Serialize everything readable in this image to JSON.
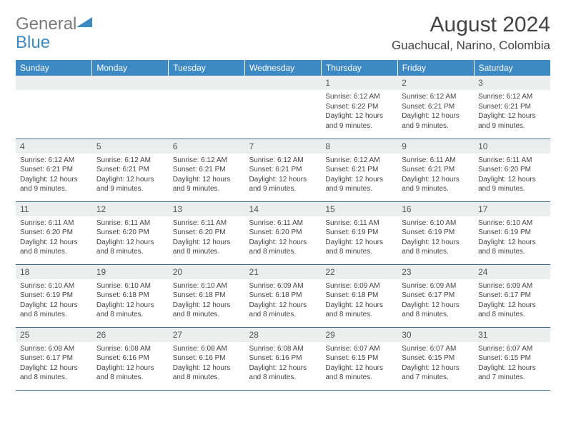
{
  "logo": {
    "text_gray": "General",
    "text_blue": "Blue",
    "triangle_color": "#3d89c4"
  },
  "header": {
    "title": "August 2024",
    "location": "Guachucal, Narino, Colombia"
  },
  "colors": {
    "header_bg": "#3d89c4",
    "header_text": "#ffffff",
    "daynum_bg": "#eceded",
    "border": "#3d6f99"
  },
  "weekdays": [
    "Sunday",
    "Monday",
    "Tuesday",
    "Wednesday",
    "Thursday",
    "Friday",
    "Saturday"
  ],
  "weeks": [
    [
      {
        "day": "",
        "sunrise": "",
        "sunset": "",
        "daylight": ""
      },
      {
        "day": "",
        "sunrise": "",
        "sunset": "",
        "daylight": ""
      },
      {
        "day": "",
        "sunrise": "",
        "sunset": "",
        "daylight": ""
      },
      {
        "day": "",
        "sunrise": "",
        "sunset": "",
        "daylight": ""
      },
      {
        "day": "1",
        "sunrise": "6:12 AM",
        "sunset": "6:22 PM",
        "daylight": "12 hours and 9 minutes."
      },
      {
        "day": "2",
        "sunrise": "6:12 AM",
        "sunset": "6:21 PM",
        "daylight": "12 hours and 9 minutes."
      },
      {
        "day": "3",
        "sunrise": "6:12 AM",
        "sunset": "6:21 PM",
        "daylight": "12 hours and 9 minutes."
      }
    ],
    [
      {
        "day": "4",
        "sunrise": "6:12 AM",
        "sunset": "6:21 PM",
        "daylight": "12 hours and 9 minutes."
      },
      {
        "day": "5",
        "sunrise": "6:12 AM",
        "sunset": "6:21 PM",
        "daylight": "12 hours and 9 minutes."
      },
      {
        "day": "6",
        "sunrise": "6:12 AM",
        "sunset": "6:21 PM",
        "daylight": "12 hours and 9 minutes."
      },
      {
        "day": "7",
        "sunrise": "6:12 AM",
        "sunset": "6:21 PM",
        "daylight": "12 hours and 9 minutes."
      },
      {
        "day": "8",
        "sunrise": "6:12 AM",
        "sunset": "6:21 PM",
        "daylight": "12 hours and 9 minutes."
      },
      {
        "day": "9",
        "sunrise": "6:11 AM",
        "sunset": "6:21 PM",
        "daylight": "12 hours and 9 minutes."
      },
      {
        "day": "10",
        "sunrise": "6:11 AM",
        "sunset": "6:20 PM",
        "daylight": "12 hours and 9 minutes."
      }
    ],
    [
      {
        "day": "11",
        "sunrise": "6:11 AM",
        "sunset": "6:20 PM",
        "daylight": "12 hours and 8 minutes."
      },
      {
        "day": "12",
        "sunrise": "6:11 AM",
        "sunset": "6:20 PM",
        "daylight": "12 hours and 8 minutes."
      },
      {
        "day": "13",
        "sunrise": "6:11 AM",
        "sunset": "6:20 PM",
        "daylight": "12 hours and 8 minutes."
      },
      {
        "day": "14",
        "sunrise": "6:11 AM",
        "sunset": "6:20 PM",
        "daylight": "12 hours and 8 minutes."
      },
      {
        "day": "15",
        "sunrise": "6:11 AM",
        "sunset": "6:19 PM",
        "daylight": "12 hours and 8 minutes."
      },
      {
        "day": "16",
        "sunrise": "6:10 AM",
        "sunset": "6:19 PM",
        "daylight": "12 hours and 8 minutes."
      },
      {
        "day": "17",
        "sunrise": "6:10 AM",
        "sunset": "6:19 PM",
        "daylight": "12 hours and 8 minutes."
      }
    ],
    [
      {
        "day": "18",
        "sunrise": "6:10 AM",
        "sunset": "6:19 PM",
        "daylight": "12 hours and 8 minutes."
      },
      {
        "day": "19",
        "sunrise": "6:10 AM",
        "sunset": "6:18 PM",
        "daylight": "12 hours and 8 minutes."
      },
      {
        "day": "20",
        "sunrise": "6:10 AM",
        "sunset": "6:18 PM",
        "daylight": "12 hours and 8 minutes."
      },
      {
        "day": "21",
        "sunrise": "6:09 AM",
        "sunset": "6:18 PM",
        "daylight": "12 hours and 8 minutes."
      },
      {
        "day": "22",
        "sunrise": "6:09 AM",
        "sunset": "6:18 PM",
        "daylight": "12 hours and 8 minutes."
      },
      {
        "day": "23",
        "sunrise": "6:09 AM",
        "sunset": "6:17 PM",
        "daylight": "12 hours and 8 minutes."
      },
      {
        "day": "24",
        "sunrise": "6:09 AM",
        "sunset": "6:17 PM",
        "daylight": "12 hours and 8 minutes."
      }
    ],
    [
      {
        "day": "25",
        "sunrise": "6:08 AM",
        "sunset": "6:17 PM",
        "daylight": "12 hours and 8 minutes."
      },
      {
        "day": "26",
        "sunrise": "6:08 AM",
        "sunset": "6:16 PM",
        "daylight": "12 hours and 8 minutes."
      },
      {
        "day": "27",
        "sunrise": "6:08 AM",
        "sunset": "6:16 PM",
        "daylight": "12 hours and 8 minutes."
      },
      {
        "day": "28",
        "sunrise": "6:08 AM",
        "sunset": "6:16 PM",
        "daylight": "12 hours and 8 minutes."
      },
      {
        "day": "29",
        "sunrise": "6:07 AM",
        "sunset": "6:15 PM",
        "daylight": "12 hours and 8 minutes."
      },
      {
        "day": "30",
        "sunrise": "6:07 AM",
        "sunset": "6:15 PM",
        "daylight": "12 hours and 7 minutes."
      },
      {
        "day": "31",
        "sunrise": "6:07 AM",
        "sunset": "6:15 PM",
        "daylight": "12 hours and 7 minutes."
      }
    ]
  ],
  "labels": {
    "sunrise": "Sunrise: ",
    "sunset": "Sunset: ",
    "daylight": "Daylight: "
  }
}
